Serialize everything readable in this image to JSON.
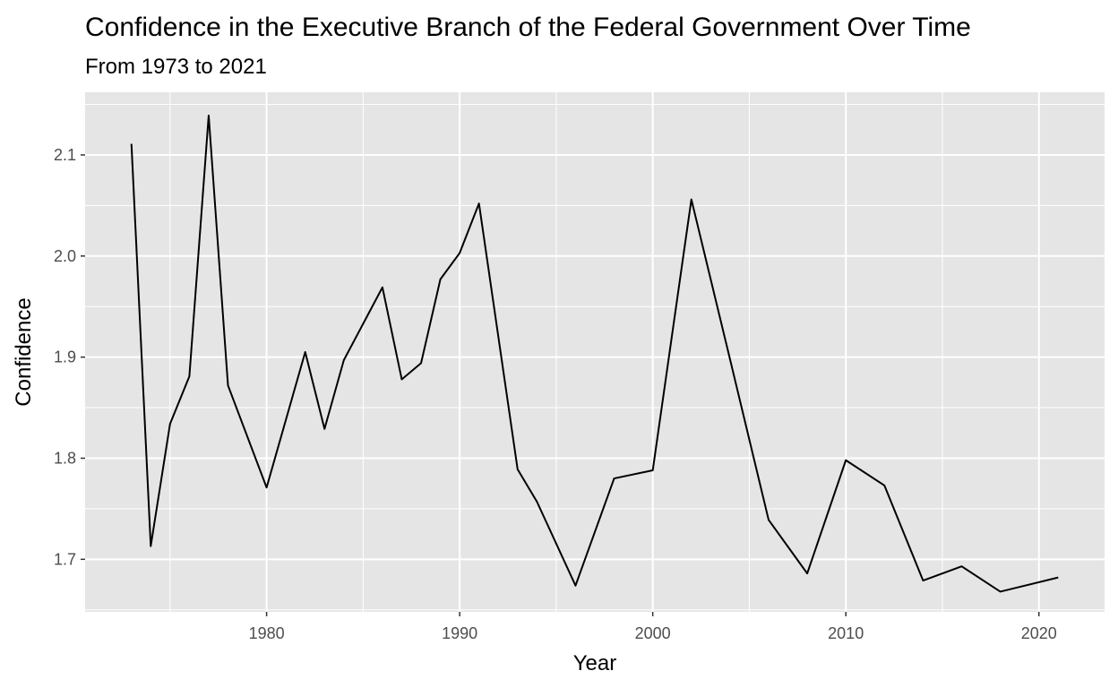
{
  "chart_data": {
    "type": "line",
    "title": "Confidence in the Executive Branch of the Federal Government Over Time",
    "subtitle": "From 1973 to 2021",
    "xlabel": "Year",
    "ylabel": "Confidence",
    "xlim": [
      1970.6,
      2023.4
    ],
    "ylim": [
      1.648,
      2.162
    ],
    "x_ticks": [
      1980,
      1990,
      2000,
      2010,
      2020
    ],
    "x_minor_ticks": [
      1975,
      1985,
      1995,
      2005,
      2015
    ],
    "y_ticks": [
      1.7,
      1.8,
      1.9,
      2.0,
      2.1
    ],
    "y_minor_ticks": [
      1.65,
      1.75,
      1.85,
      1.95,
      2.05,
      2.15
    ],
    "x_tick_labels": [
      "1980",
      "1990",
      "2000",
      "2010",
      "2020"
    ],
    "y_tick_labels": [
      "1.7",
      "1.8",
      "1.9",
      "2.0",
      "2.1"
    ],
    "grid": true,
    "legend": "none",
    "colors": {
      "panel": "#e5e5e5",
      "grid": "#ffffff",
      "line": "#000000",
      "tick_label": "#4d4d4d",
      "tick": "#333333"
    },
    "series": [
      {
        "x": [
          1973,
          1974,
          1975,
          1976,
          1977,
          1978,
          1980,
          1982,
          1983,
          1984,
          1986,
          1987,
          1988,
          1989,
          1990,
          1991,
          1993,
          1994,
          1996,
          1998,
          2000,
          2002,
          2004,
          2006,
          2008,
          2010,
          2012,
          2014,
          2016,
          2018,
          2021
        ],
        "y": [
          2.111,
          1.713,
          1.834,
          1.881,
          2.139,
          1.872,
          1.771,
          1.905,
          1.829,
          1.897,
          1.969,
          1.878,
          1.894,
          1.977,
          2.003,
          2.052,
          1.789,
          1.757,
          1.674,
          1.78,
          1.788,
          2.056,
          1.898,
          1.739,
          1.686,
          1.798,
          1.773,
          1.679,
          1.693,
          1.668,
          1.682
        ]
      }
    ]
  }
}
